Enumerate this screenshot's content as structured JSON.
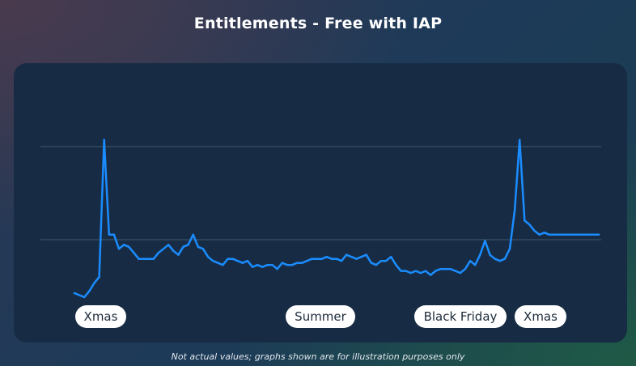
{
  "title": "Entitlements - Free with IAP",
  "footnote": "Not actual values; graphs shown are for illustration purposes only",
  "colors": {
    "line": "#1a8cff",
    "gridline": "#3a4f66",
    "panel": "#172c44",
    "pill_bg": "#ffffff",
    "pill_text": "#1c2b3c"
  },
  "chart_data": {
    "type": "line",
    "title": "Entitlements - Free with IAP",
    "xlabel": "",
    "ylabel": "",
    "grid": "two horizontal gridlines, no axis labels",
    "xlim": [
      0,
      106
    ],
    "ylim": [
      0,
      100
    ],
    "annotations": [
      {
        "label": "Xmas",
        "x": 9
      },
      {
        "label": "Summer",
        "x": 50
      },
      {
        "label": "Black Friday",
        "x": 78
      },
      {
        "label": "Xmas",
        "x": 90
      }
    ],
    "series": [
      {
        "values": [
          4,
          3,
          2,
          5,
          9,
          12,
          80,
          33,
          33,
          26,
          28,
          27,
          24,
          21,
          21,
          21,
          21,
          24,
          26,
          28,
          25,
          23,
          27,
          28,
          33,
          27,
          26,
          22,
          20,
          19,
          18,
          21,
          21,
          20,
          19,
          20,
          17,
          18,
          17,
          18,
          18,
          16,
          19,
          18,
          18,
          19,
          19,
          20,
          21,
          21,
          21,
          22,
          21,
          21,
          20,
          23,
          22,
          21,
          22,
          23,
          19,
          18,
          20,
          20,
          22,
          18,
          15,
          15,
          14,
          15,
          14,
          15,
          13,
          15,
          16,
          16,
          16,
          15,
          14,
          16,
          20,
          18,
          23,
          30,
          23,
          21,
          20,
          21,
          26,
          45,
          80,
          40,
          38,
          35,
          33,
          34,
          33,
          33,
          33,
          33,
          33,
          33,
          33,
          33,
          33,
          33,
          33
        ]
      }
    ]
  }
}
